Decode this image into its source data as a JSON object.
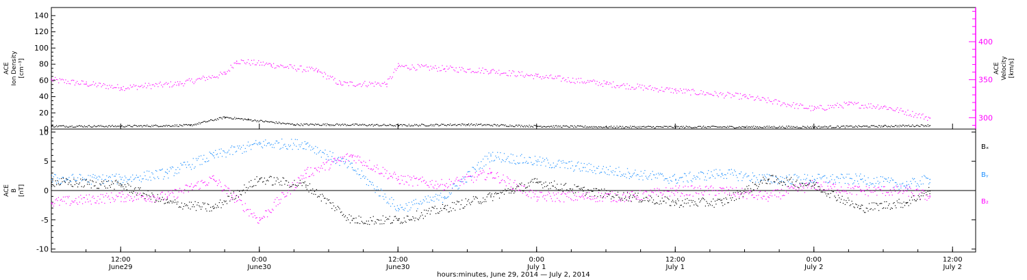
{
  "figure": {
    "xaxis_title": "hours:minutes, June 29, 2014 — July  2, 2014",
    "date_start": "2014-06-29T06:00",
    "date_end": "2014-07-02T14:00",
    "xticks": [
      {
        "time": "2014-06-29T12:00",
        "line1": "12:00",
        "line2": "June29"
      },
      {
        "time": "2014-06-30T00:00",
        "line1": "0:00",
        "line2": "June30"
      },
      {
        "time": "2014-06-30T12:00",
        "line1": "12:00",
        "line2": "June30"
      },
      {
        "time": "2014-07-01T00:00",
        "line1": "0:00",
        "line2": "July 1"
      },
      {
        "time": "2014-07-01T12:00",
        "line1": "12:00",
        "line2": "July 1"
      },
      {
        "time": "2014-07-02T00:00",
        "line1": "0:00",
        "line2": "July 2"
      },
      {
        "time": "2014-07-02T12:00",
        "line1": "12:00",
        "line2": "July 2"
      }
    ],
    "colors": {
      "black": "#000000",
      "magenta": "#ff00ff",
      "blue": "#1e90ff"
    }
  },
  "chart_data": [
    {
      "type": "scatter",
      "panel": "top",
      "left_ylabel": [
        "ACE",
        "Ion Density",
        "[cm⁻³]"
      ],
      "right_ylabel": [
        "ACE",
        "Velocity",
        "[km/s]"
      ],
      "left_ylim": [
        0,
        150
      ],
      "left_ticks": [
        0,
        20,
        40,
        60,
        80,
        100,
        120,
        140
      ],
      "right_ylim": [
        285,
        445
      ],
      "right_ticks": [
        300,
        350,
        400
      ],
      "series": [
        {
          "axis": "left",
          "color": "#000000",
          "x": [
            "2014-06-29T06:00",
            "2014-06-29T12:00",
            "2014-06-29T18:00",
            "2014-06-29T21:00",
            "2014-06-29T23:00",
            "2014-06-30T03:00",
            "2014-06-30T06:00",
            "2014-06-30T12:00",
            "2014-06-30T18:00",
            "2014-07-01T00:00",
            "2014-07-01T06:00",
            "2014-07-01T12:00",
            "2014-07-01T18:00",
            "2014-07-02T00:00",
            "2014-07-02T06:00",
            "2014-07-02T10:00"
          ],
          "values": [
            4,
            4,
            5,
            15,
            12,
            6,
            6,
            5,
            6,
            4,
            3,
            3,
            3,
            3,
            4,
            5
          ]
        },
        {
          "axis": "right",
          "color": "#ff00ff",
          "x": [
            "2014-06-29T06:00",
            "2014-06-29T09:00",
            "2014-06-29T12:00",
            "2014-06-29T17:00",
            "2014-06-29T21:00",
            "2014-06-29T22:00",
            "2014-06-30T01:00",
            "2014-06-30T05:00",
            "2014-06-30T07:00",
            "2014-06-30T11:00",
            "2014-06-30T12:00",
            "2014-06-30T16:00",
            "2014-06-30T20:00",
            "2014-07-01T00:00",
            "2014-07-01T06:00",
            "2014-07-01T12:00",
            "2014-07-01T18:00",
            "2014-07-02T00:00",
            "2014-07-02T03:00",
            "2014-07-02T06:00",
            "2014-07-02T10:00"
          ],
          "values": [
            350,
            345,
            340,
            345,
            358,
            375,
            370,
            362,
            345,
            345,
            368,
            365,
            362,
            355,
            345,
            336,
            328,
            312,
            318,
            315,
            300
          ]
        }
      ]
    },
    {
      "type": "scatter",
      "panel": "bottom",
      "left_ylabel": [
        "ACE",
        "B",
        "[nT]"
      ],
      "ylim": [
        -10.5,
        10.5
      ],
      "yticks": [
        -10,
        -5,
        0,
        5,
        10
      ],
      "zero_line": true,
      "legend": [
        "Bₓ",
        "Bᵧ",
        "B₂"
      ],
      "legend_position": "right",
      "series": [
        {
          "name": "Bₓ",
          "color": "#000000",
          "x": [
            "2014-06-29T06:00",
            "2014-06-29T12:00",
            "2014-06-29T16:00",
            "2014-06-29T20:00",
            "2014-06-30T00:00",
            "2014-06-30T04:00",
            "2014-06-30T08:00",
            "2014-06-30T12:00",
            "2014-06-30T16:00",
            "2014-06-30T20:00",
            "2014-07-01T00:00",
            "2014-07-01T04:00",
            "2014-07-01T08:00",
            "2014-07-01T12:00",
            "2014-07-01T16:00",
            "2014-07-01T20:00",
            "2014-07-02T00:00",
            "2014-07-02T04:00",
            "2014-07-02T08:00",
            "2014-07-02T10:00"
          ],
          "values": [
            1.5,
            1,
            -2,
            -3,
            2,
            1,
            -5,
            -5,
            -3,
            -1,
            1.5,
            0,
            -1,
            -2,
            -2,
            2,
            1,
            -3,
            -2,
            0
          ]
        },
        {
          "name": "Bᵧ",
          "color": "#1e90ff",
          "x": [
            "2014-06-29T06:00",
            "2014-06-29T12:00",
            "2014-06-29T16:00",
            "2014-06-29T20:00",
            "2014-06-30T00:00",
            "2014-06-30T04:00",
            "2014-06-30T08:00",
            "2014-06-30T12:00",
            "2014-06-30T16:00",
            "2014-06-30T20:00",
            "2014-07-01T00:00",
            "2014-07-01T04:00",
            "2014-07-01T08:00",
            "2014-07-01T12:00",
            "2014-07-01T16:00",
            "2014-07-01T20:00",
            "2014-07-02T00:00",
            "2014-07-02T04:00",
            "2014-07-02T08:00",
            "2014-07-02T10:00"
          ],
          "values": [
            2,
            2,
            3,
            6,
            8,
            8,
            4,
            -3,
            -1,
            6,
            5,
            4,
            3,
            2,
            3,
            2,
            2,
            2,
            1,
            2
          ]
        },
        {
          "name": "B₂",
          "color": "#ff00ff",
          "x": [
            "2014-06-29T06:00",
            "2014-06-29T12:00",
            "2014-06-29T16:00",
            "2014-06-29T20:00",
            "2014-06-30T00:00",
            "2014-06-30T04:00",
            "2014-06-30T08:00",
            "2014-06-30T12:00",
            "2014-06-30T16:00",
            "2014-06-30T20:00",
            "2014-07-01T00:00",
            "2014-07-01T04:00",
            "2014-07-01T08:00",
            "2014-07-01T12:00",
            "2014-07-01T16:00",
            "2014-07-01T20:00",
            "2014-07-02T00:00",
            "2014-07-02T04:00",
            "2014-07-02T08:00",
            "2014-07-02T10:00"
          ],
          "values": [
            -2,
            -1,
            -1,
            2,
            -5,
            3,
            6,
            2,
            1,
            3,
            -1,
            -1,
            -1,
            0,
            0,
            -1,
            1,
            0,
            0,
            -1
          ]
        }
      ]
    }
  ]
}
